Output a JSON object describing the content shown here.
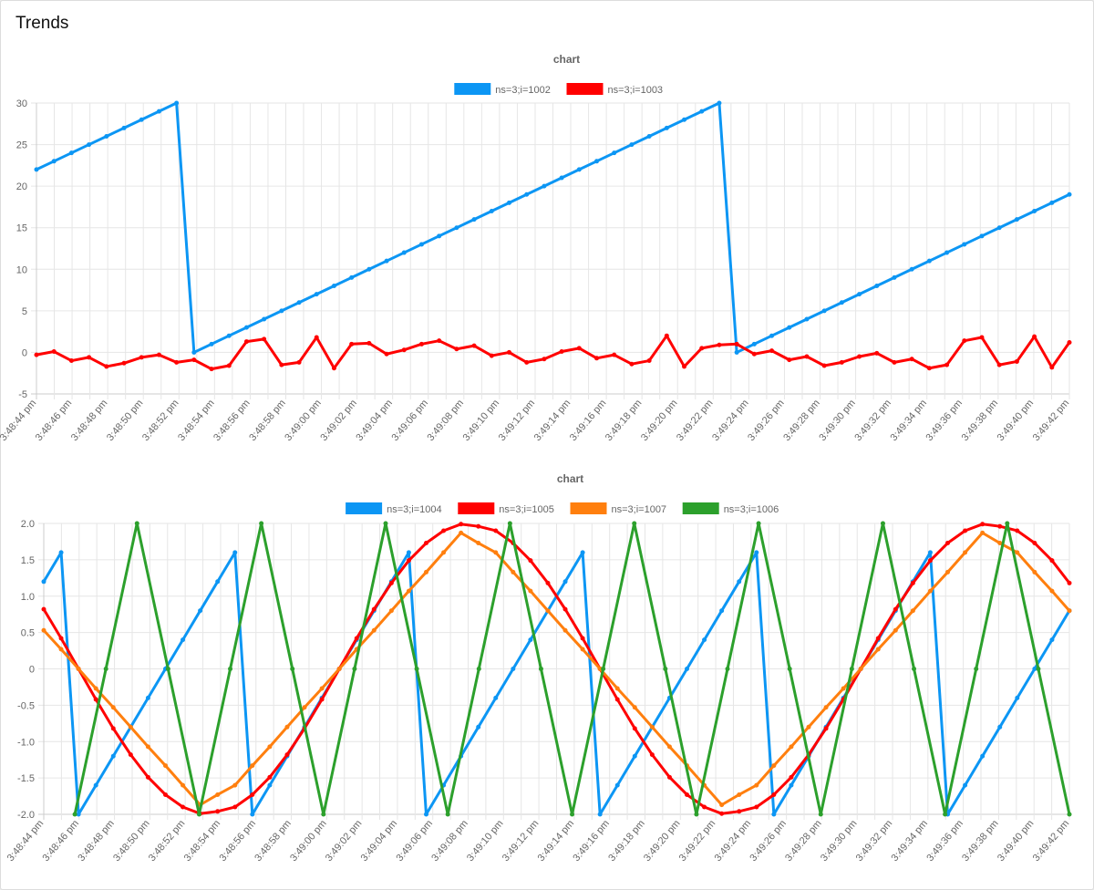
{
  "page": {
    "title": "Trends"
  },
  "chart_data": [
    {
      "type": "line",
      "title": "chart",
      "legend_position": "top",
      "grid": true,
      "ylim": [
        -5,
        30
      ],
      "y_ticks": [
        "30",
        "25",
        "20",
        "15",
        "10",
        "5",
        "0",
        "-5"
      ],
      "x_tick_labels": [
        "3:48:44 pm",
        "3:48:46 pm",
        "3:48:48 pm",
        "3:48:50 pm",
        "3:48:52 pm",
        "3:48:54 pm",
        "3:48:56 pm",
        "3:48:58 pm",
        "3:49:00 pm",
        "3:49:02 pm",
        "3:49:04 pm",
        "3:49:06 pm",
        "3:49:08 pm",
        "3:49:10 pm",
        "3:49:12 pm",
        "3:49:14 pm",
        "3:49:16 pm",
        "3:49:18 pm",
        "3:49:20 pm",
        "3:49:22 pm",
        "3:49:24 pm",
        "3:49:26 pm",
        "3:49:28 pm",
        "3:49:30 pm",
        "3:49:32 pm",
        "3:49:34 pm",
        "3:49:36 pm",
        "3:49:38 pm",
        "3:49:40 pm",
        "3:49:42 pm"
      ],
      "series": [
        {
          "name": "ns=3;i=1002",
          "color": "#0c96f4",
          "values": [
            22,
            23,
            24,
            25,
            26,
            27,
            28,
            29,
            30,
            0,
            1,
            2,
            3,
            4,
            5,
            6,
            7,
            8,
            9,
            10,
            11,
            12,
            13,
            14,
            15,
            16,
            17,
            18,
            19,
            20,
            21,
            22,
            23,
            24,
            25,
            26,
            27,
            28,
            29,
            30,
            0,
            1,
            2,
            3,
            4,
            5,
            6,
            7,
            8,
            9,
            10,
            11,
            12,
            13,
            14,
            15,
            16,
            17,
            18,
            19
          ]
        },
        {
          "name": "ns=3;i=1003",
          "color": "#ff0000",
          "values": [
            -0.3,
            0.1,
            -1.0,
            -0.6,
            -1.7,
            -1.3,
            -0.6,
            -0.3,
            -1.2,
            -0.9,
            -2.0,
            -1.6,
            1.3,
            1.6,
            -1.5,
            -1.2,
            1.8,
            -1.9,
            1.0,
            1.1,
            -0.2,
            0.3,
            1.0,
            1.4,
            0.4,
            0.8,
            -0.4,
            0.0,
            -1.2,
            -0.8,
            0.1,
            0.5,
            -0.7,
            -0.3,
            -1.4,
            -1.0,
            2.0,
            -1.7,
            0.5,
            0.9,
            1.0,
            -0.2,
            0.2,
            -0.9,
            -0.5,
            -1.6,
            -1.2,
            -0.5,
            -0.1,
            -1.2,
            -0.8,
            -1.9,
            -1.5,
            1.4,
            1.8,
            -1.5,
            -1.1,
            1.9,
            -1.8,
            1.2
          ]
        }
      ]
    },
    {
      "type": "line",
      "title": "chart",
      "legend_position": "top",
      "grid": true,
      "ylim": [
        -2.0,
        2.0
      ],
      "y_ticks": [
        "2.0",
        "1.5",
        "1.0",
        "0.5",
        "0",
        "-0.5",
        "-1.0",
        "-1.5",
        "-2.0"
      ],
      "x_tick_labels": [
        "3:48:44 pm",
        "3:48:46 pm",
        "3:48:48 pm",
        "3:48:50 pm",
        "3:48:52 pm",
        "3:48:54 pm",
        "3:48:56 pm",
        "3:48:58 pm",
        "3:49:00 pm",
        "3:49:02 pm",
        "3:49:04 pm",
        "3:49:06 pm",
        "3:49:08 pm",
        "3:49:10 pm",
        "3:49:12 pm",
        "3:49:14 pm",
        "3:49:16 pm",
        "3:49:18 pm",
        "3:49:20 pm",
        "3:49:22 pm",
        "3:49:24 pm",
        "3:49:26 pm",
        "3:49:28 pm",
        "3:49:30 pm",
        "3:49:32 pm",
        "3:49:34 pm",
        "3:49:36 pm",
        "3:49:38 pm",
        "3:49:40 pm",
        "3:49:42 pm"
      ],
      "series": [
        {
          "name": "ns=3;i=1004",
          "color": "#0c96f4",
          "values": [
            1.2,
            1.6,
            -2.0,
            -1.6,
            -1.2,
            -0.8,
            -0.4,
            0.0,
            0.4,
            0.8,
            1.2,
            1.6,
            -2.0,
            -1.6,
            -1.2,
            -0.8,
            -0.4,
            0.0,
            0.4,
            0.8,
            1.2,
            1.6,
            -2.0,
            -1.6,
            -1.2,
            -0.8,
            -0.4,
            0.0,
            0.4,
            0.8,
            1.2,
            1.6,
            -2.0,
            -1.6,
            -1.2,
            -0.8,
            -0.4,
            0.0,
            0.4,
            0.8,
            1.2,
            1.6,
            -2.0,
            -1.6,
            -1.2,
            -0.8,
            -0.4,
            0.0,
            0.4,
            0.8,
            1.2,
            1.6,
            -2.0,
            -1.6,
            -1.2,
            -0.8,
            -0.4,
            0.0,
            0.4,
            0.8
          ]
        },
        {
          "name": "ns=3;i=1005",
          "color": "#ff0000",
          "values": [
            0.82,
            0.42,
            0.0,
            -0.42,
            -0.82,
            -1.18,
            -1.49,
            -1.73,
            -1.9,
            -1.99,
            -1.96,
            -1.9,
            -1.73,
            -1.49,
            -1.18,
            -0.82,
            -0.42,
            0.0,
            0.42,
            0.82,
            1.18,
            1.49,
            1.73,
            1.9,
            1.99,
            1.96,
            1.9,
            1.73,
            1.49,
            1.18,
            0.82,
            0.42,
            0.0,
            -0.42,
            -0.82,
            -1.18,
            -1.49,
            -1.73,
            -1.9,
            -1.99,
            -1.96,
            -1.9,
            -1.73,
            -1.49,
            -1.18,
            -0.82,
            -0.42,
            0.0,
            0.42,
            0.82,
            1.18,
            1.49,
            1.73,
            1.9,
            1.99,
            1.96,
            1.9,
            1.73,
            1.49,
            1.18
          ]
        },
        {
          "name": "ns=3;i=1007",
          "color": "#ff7f0e",
          "values": [
            0.53,
            0.27,
            0.0,
            -0.27,
            -0.53,
            -0.8,
            -1.07,
            -1.33,
            -1.6,
            -1.87,
            -1.73,
            -1.6,
            -1.33,
            -1.07,
            -0.8,
            -0.53,
            -0.27,
            0.0,
            0.27,
            0.53,
            0.8,
            1.07,
            1.33,
            1.6,
            1.87,
            1.73,
            1.6,
            1.33,
            1.07,
            0.8,
            0.53,
            0.27,
            0.0,
            -0.27,
            -0.53,
            -0.8,
            -1.07,
            -1.33,
            -1.6,
            -1.87,
            -1.73,
            -1.6,
            -1.33,
            -1.07,
            -0.8,
            -0.53,
            -0.27,
            0.0,
            0.27,
            0.53,
            0.8,
            1.07,
            1.33,
            1.6,
            1.87,
            1.73,
            1.6,
            1.33,
            1.07,
            0.8
          ]
        },
        {
          "name": "ns=3;i=1006",
          "color": "#2ca02c",
          "values": [
            null,
            -2.0,
            0.0,
            2.0,
            0.0,
            -2.0,
            0.0,
            2.0,
            0.0,
            -2.0,
            0.0,
            2.0,
            0.0,
            -2.0,
            0.0,
            2.0,
            0.0,
            -2.0,
            0.0,
            2.0,
            0.0,
            -2.0,
            0.0,
            2.0,
            0.0,
            -2.0,
            0.0,
            2.0,
            0.0,
            -2.0,
            0.0,
            2.0,
            0.0,
            -2.0
          ]
        }
      ]
    }
  ]
}
